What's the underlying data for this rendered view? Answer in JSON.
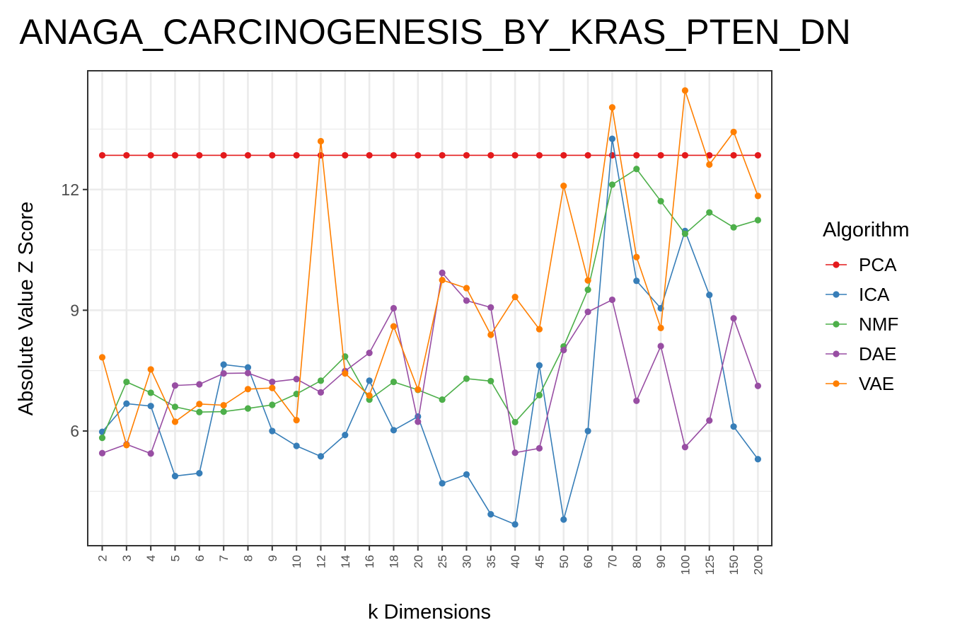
{
  "chart_data": {
    "type": "line",
    "title": "ANAGA_CARCINOGENESIS_BY_KRAS_PTEN_DN",
    "xlabel": "k Dimensions",
    "ylabel": "Absolute Value Z Score",
    "categories": [
      "2",
      "3",
      "4",
      "5",
      "6",
      "7",
      "8",
      "9",
      "10",
      "12",
      "14",
      "16",
      "18",
      "20",
      "25",
      "30",
      "35",
      "40",
      "45",
      "50",
      "60",
      "70",
      "80",
      "90",
      "100",
      "125",
      "150",
      "200"
    ],
    "yticks": [
      6,
      9,
      12
    ],
    "ylim": [
      3.15,
      14.95
    ],
    "grid": true,
    "legend": {
      "title": "Algorithm",
      "position": "right"
    },
    "series": [
      {
        "name": "PCA",
        "color": "#E41A1C",
        "values": [
          12.85,
          12.85,
          12.85,
          12.85,
          12.85,
          12.85,
          12.85,
          12.85,
          12.85,
          12.85,
          12.85,
          12.85,
          12.85,
          12.85,
          12.85,
          12.85,
          12.85,
          12.85,
          12.85,
          12.85,
          12.85,
          12.85,
          12.85,
          12.85,
          12.85,
          12.85,
          12.85,
          12.85
        ]
      },
      {
        "name": "ICA",
        "color": "#377EB8",
        "values": [
          5.98,
          6.68,
          6.62,
          4.88,
          4.95,
          7.65,
          7.58,
          6.0,
          5.63,
          5.37,
          5.9,
          7.25,
          6.02,
          6.36,
          4.7,
          4.92,
          3.93,
          3.68,
          7.63,
          3.8,
          6.0,
          13.26,
          9.73,
          9.05,
          10.97,
          9.38,
          6.11,
          5.3
        ]
      },
      {
        "name": "NMF",
        "color": "#4DAF4A",
        "values": [
          5.83,
          7.22,
          6.95,
          6.6,
          6.47,
          6.48,
          6.56,
          6.65,
          6.92,
          7.25,
          7.85,
          6.78,
          7.22,
          7.02,
          6.78,
          7.3,
          7.24,
          6.22,
          6.89,
          8.1,
          9.51,
          12.12,
          12.51,
          11.71,
          10.9,
          11.43,
          11.06,
          11.24
        ]
      },
      {
        "name": "DAE",
        "color": "#984EA3",
        "values": [
          5.45,
          5.67,
          5.44,
          7.13,
          7.16,
          7.43,
          7.44,
          7.22,
          7.29,
          6.96,
          7.49,
          7.94,
          9.05,
          6.23,
          9.93,
          9.24,
          9.07,
          5.46,
          5.57,
          8.01,
          8.96,
          9.26,
          6.75,
          8.11,
          5.6,
          6.26,
          8.8,
          7.12
        ]
      },
      {
        "name": "VAE",
        "color": "#FF7F00",
        "values": [
          7.83,
          5.65,
          7.53,
          6.23,
          6.67,
          6.64,
          7.04,
          7.07,
          6.27,
          13.2,
          7.43,
          6.88,
          8.6,
          7.03,
          9.75,
          9.55,
          8.39,
          9.33,
          8.53,
          12.09,
          9.74,
          14.04,
          10.32,
          8.56,
          14.46,
          12.62,
          13.43,
          11.84
        ]
      }
    ]
  }
}
